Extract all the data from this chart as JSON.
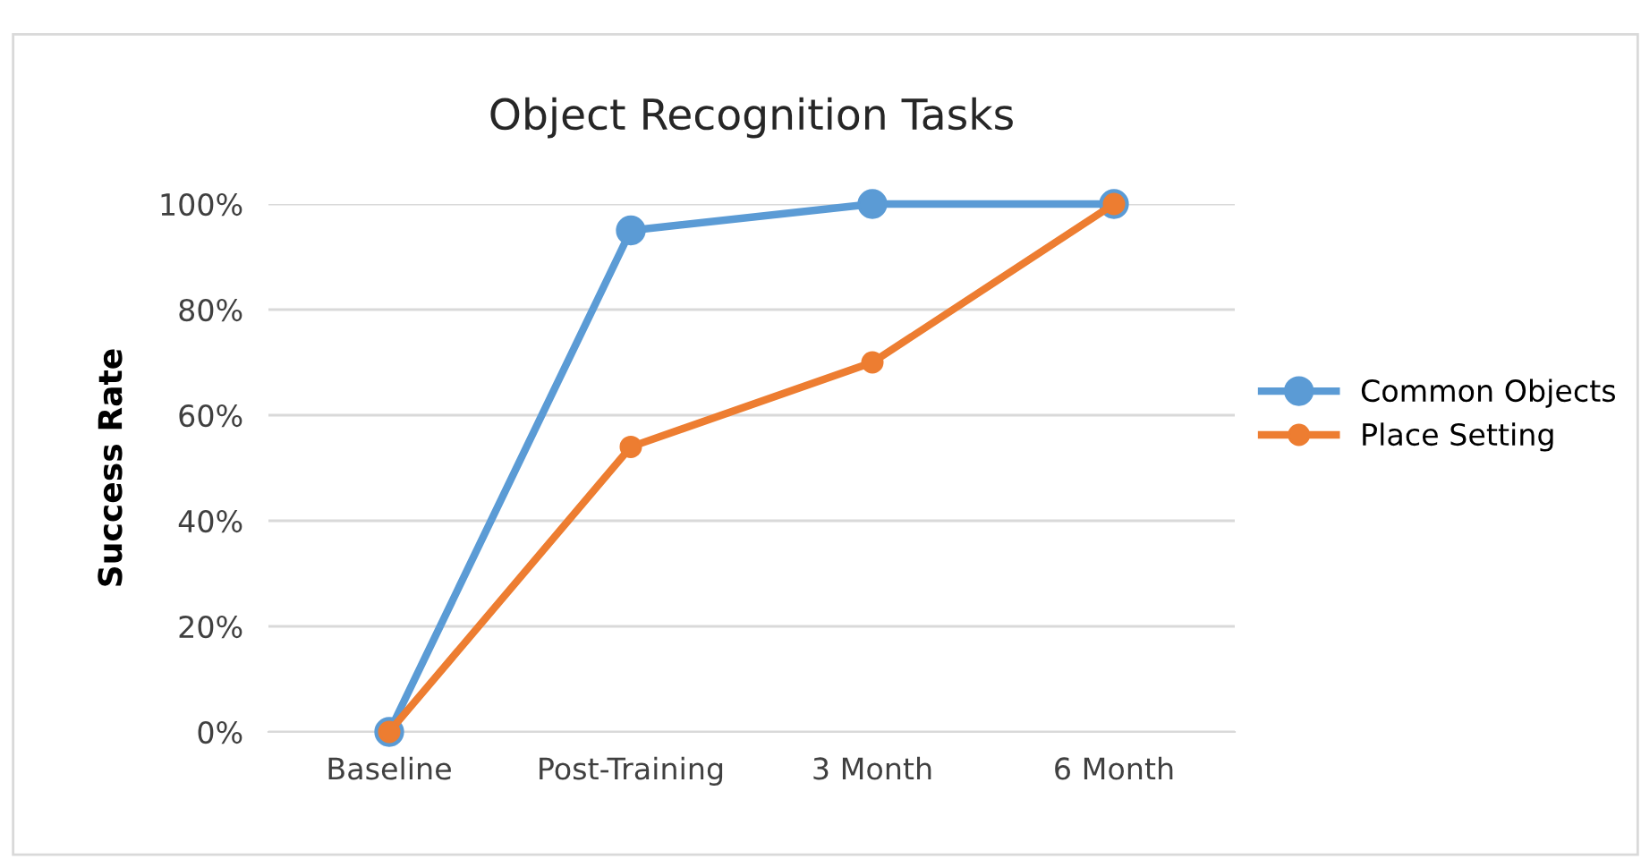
{
  "chart_data": {
    "type": "line",
    "title": "Object Recognition Tasks",
    "ylabel": "Success Rate",
    "categories": [
      "Baseline",
      "Post-Training",
      "3 Month",
      "6 Month"
    ],
    "series": [
      {
        "name": "Common Objects",
        "color": "#5b9bd5",
        "values": [
          0,
          95,
          100,
          100
        ]
      },
      {
        "name": "Place Setting",
        "color": "#ed7d31",
        "values": [
          0,
          54,
          70,
          100
        ]
      }
    ],
    "ylim": [
      0,
      100
    ],
    "yticks": [
      {
        "value": 0,
        "label": "0%"
      },
      {
        "value": 20,
        "label": "20%"
      },
      {
        "value": 40,
        "label": "40%"
      },
      {
        "value": 60,
        "label": "60%"
      },
      {
        "value": 80,
        "label": "80%"
      },
      {
        "value": 100,
        "label": "100%"
      }
    ],
    "grid": "y",
    "legend": "right",
    "marker": "circle",
    "line_style": "solid"
  }
}
